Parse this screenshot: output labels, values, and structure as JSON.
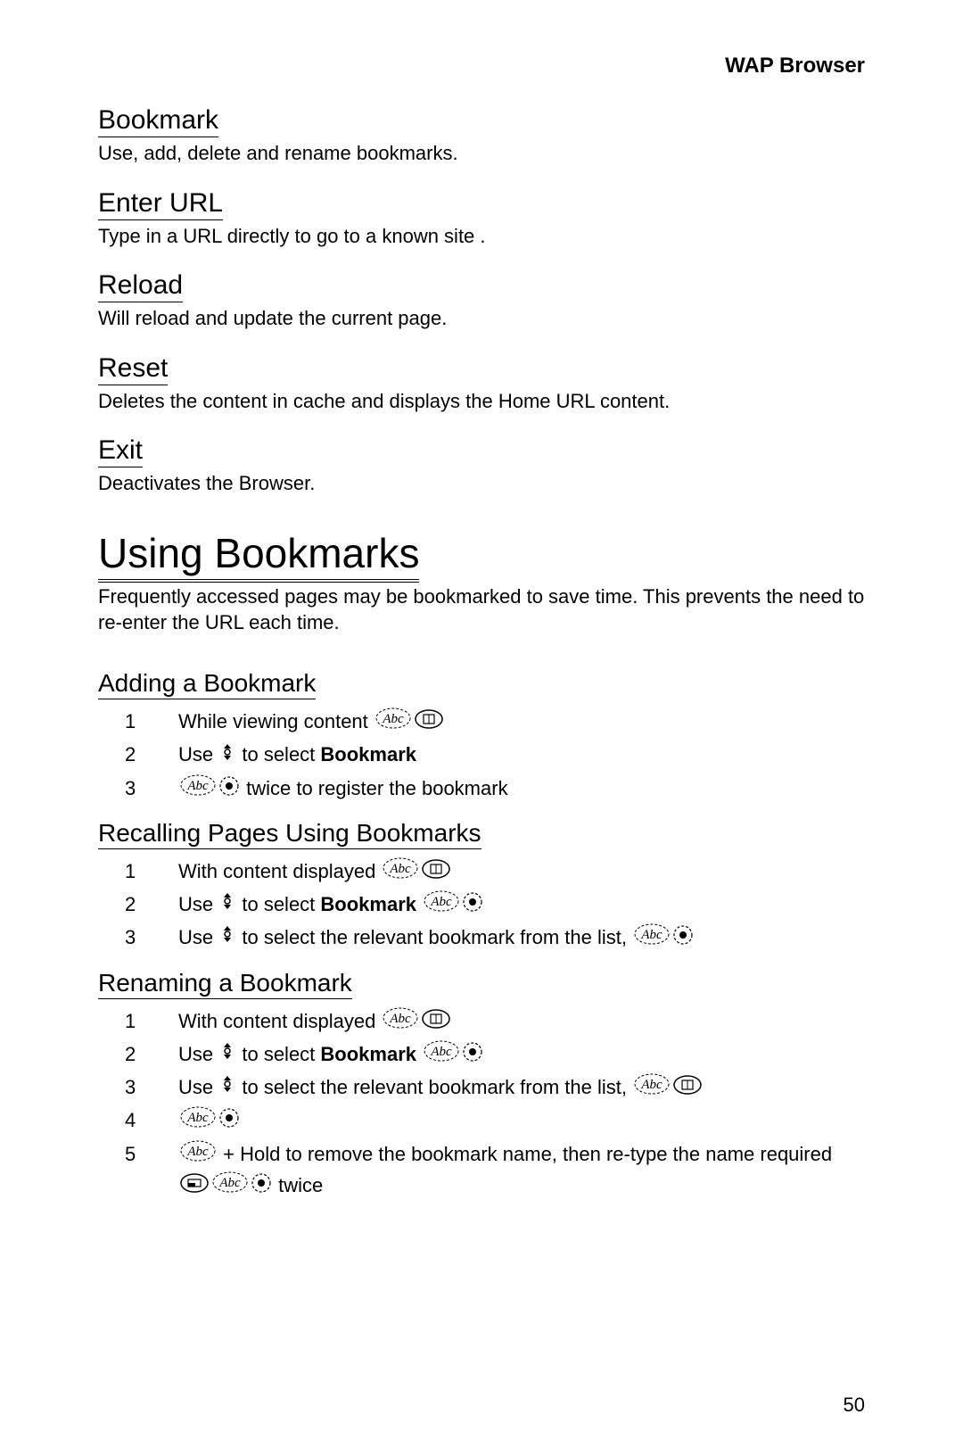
{
  "header": {
    "title": "WAP Browser"
  },
  "sections": [
    {
      "heading": "Bookmark",
      "desc": "Use, add, delete and rename bookmarks."
    },
    {
      "heading": "Enter URL",
      "desc": "Type in a URL directly to go to a known site ."
    },
    {
      "heading": "Reload",
      "desc": "Will reload and update the current page."
    },
    {
      "heading": "Reset",
      "desc": "Deletes the content in cache and displays the Home URL content."
    },
    {
      "heading": "Exit",
      "desc": "Deactivates the Browser."
    }
  ],
  "mainHeading": "Using Bookmarks",
  "mainDesc": "Frequently accessed pages may be bookmarked to save time. This prevents the need to re-enter the URL each time.",
  "sub1": {
    "heading": "Adding a Bookmark",
    "steps": [
      {
        "n": "1",
        "pre": "While viewing content ",
        "icons": [
          "press",
          "menu"
        ]
      },
      {
        "n": "2",
        "pre": "Use ",
        "icons": [
          "nav"
        ],
        "mid": " to select ",
        "bold": "Bookmark"
      },
      {
        "n": "3",
        "pre": "",
        "icons": [
          "press",
          "select"
        ],
        "post": " twice to register the bookmark"
      }
    ]
  },
  "sub2": {
    "heading": "Recalling Pages Using Bookmarks",
    "steps": [
      {
        "n": "1",
        "pre": "With content displayed ",
        "icons": [
          "press",
          "menu"
        ]
      },
      {
        "n": "2",
        "pre": "Use ",
        "icons": [
          "nav"
        ],
        "mid": " to select ",
        "bold": "Bookmark",
        "post": " ",
        "icons2": [
          "press",
          "select"
        ]
      },
      {
        "n": "3",
        "pre": "Use ",
        "icons": [
          "nav"
        ],
        "mid": " to select the relevant bookmark from the list,  ",
        "icons2": [
          "press",
          "select"
        ]
      }
    ]
  },
  "sub3": {
    "heading": "Renaming a Bookmark",
    "steps": [
      {
        "n": "1",
        "pre": "With content displayed ",
        "icons": [
          "press",
          "menu"
        ]
      },
      {
        "n": "2",
        "pre": "Use ",
        "icons": [
          "nav"
        ],
        "mid": " to select ",
        "bold": "Bookmark",
        "post": "  ",
        "icons2": [
          "press",
          "select"
        ]
      },
      {
        "n": "3",
        "pre": "Use ",
        "icons": [
          "nav"
        ],
        "mid": " to select the relevant bookmark from the list,  ",
        "icons2": [
          "press",
          "menu"
        ]
      },
      {
        "n": "4",
        "pre": "",
        "icons": [
          "press",
          "select"
        ]
      },
      {
        "n": "5",
        "pre": "",
        "icons": [
          "press"
        ],
        "mid": " + Hold ",
        "icons2": [
          "clear"
        ],
        "post": " to remove the bookmark name, then re-type the name required  ",
        "icons3": [
          "press",
          "select"
        ],
        "tail": " twice"
      }
    ]
  },
  "pageNumber": "50",
  "style": {
    "background_color": "#ffffff",
    "text_color": "#000000",
    "header_fontsize": 24,
    "section_heading_fontsize": 30,
    "body_fontsize": 22,
    "big_heading_fontsize": 46,
    "sub_heading_fontsize": 28
  }
}
